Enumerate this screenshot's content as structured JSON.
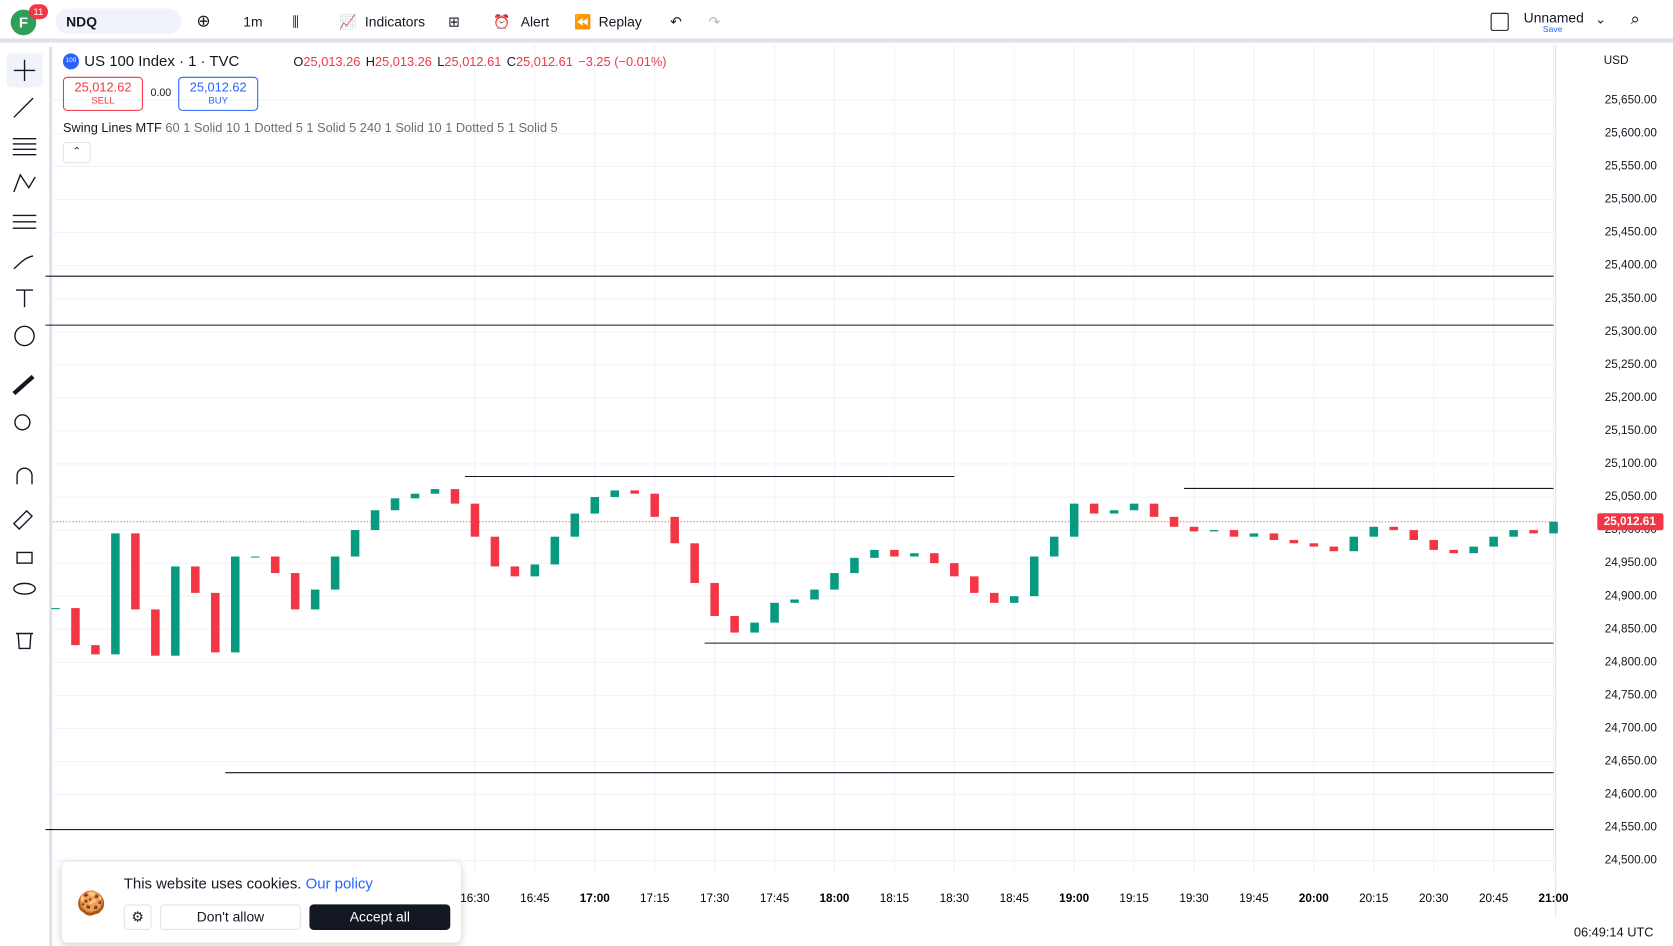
{
  "toolbar": {
    "profile": "F",
    "notifications": "11",
    "symbol": "NDQ",
    "interval": "1m",
    "indicators": "Indicators",
    "alert": "Alert",
    "replay": "Replay",
    "layout_name": "Unnamed",
    "save": "Save"
  },
  "legend": {
    "title": "US 100 Index · 1 · TVC",
    "ohlc": [
      {
        "label": "O",
        "value": "25,013.26"
      },
      {
        "label": "H",
        "value": "25,013.26"
      },
      {
        "label": "L",
        "value": "25,012.61"
      },
      {
        "label": "C",
        "value": "25,012.61"
      }
    ],
    "change": "−3.25 (−0.01%)"
  },
  "trade": {
    "sell_price": "25,012.62",
    "sell": "SELL",
    "spread": "0.00",
    "buy_price": "25,012.62",
    "buy": "BUY"
  },
  "indicator": {
    "name": "Swing Lines MTF",
    "params": "60 1 Solid 10 1 Dotted 5 1 Solid 5 240 1 Solid 10 1 Dotted 5 1 Solid 5"
  },
  "currency": "USD",
  "chart_data": {
    "type": "candlestick",
    "categories": [
      null,
      null,
      null,
      null,
      null,
      null,
      null,
      null,
      null,
      null,
      null,
      null,
      null,
      null,
      null,
      null,
      null,
      null,
      null,
      null,
      null,
      "16:30",
      null,
      null,
      "16:45",
      null,
      null,
      "17:00",
      null,
      null,
      "17:15",
      null,
      null,
      "17:30",
      null,
      null,
      "17:45",
      null,
      null,
      "18:00",
      null,
      null,
      "18:15",
      null,
      null,
      "18:30",
      null,
      null,
      "18:45",
      null,
      null,
      "19:00",
      null,
      null,
      "19:15",
      null,
      null,
      "19:30",
      null,
      null,
      "19:45",
      null,
      null,
      "20:00",
      null,
      null,
      "20:15",
      null,
      null,
      "20:30",
      null,
      null,
      "20:45",
      null,
      null,
      "21:00"
    ],
    "closes": [
      24882,
      24826,
      24812,
      24995,
      24880,
      24810,
      24945,
      24905,
      24815,
      24960,
      24960,
      24935,
      24880,
      24910,
      24960,
      25000,
      25030,
      25048,
      25055,
      25062,
      25040,
      24990,
      24945,
      24930,
      24948,
      24990,
      25025,
      25050,
      25060,
      25055,
      25020,
      24980,
      24920,
      24870,
      24845,
      24860,
      24890,
      24895,
      24910,
      24935,
      24958,
      24970,
      24960,
      24965,
      24950,
      24930,
      24905,
      24890,
      24900,
      24960,
      24990,
      25040,
      25025,
      25030,
      25040,
      25020,
      25005,
      24998,
      25000,
      24990,
      24995,
      24985,
      24980,
      24975,
      24968,
      24990,
      25005,
      25000,
      24985,
      24970,
      24965,
      24975,
      24990,
      25000,
      24995,
      25012.61
    ],
    "up_color": "#089981",
    "down_color": "#f23645",
    "ylim": [
      24479,
      25734
    ],
    "yticks": [
      {
        "value": 25650,
        "label": "25,650.00"
      },
      {
        "value": 25600,
        "label": "25,600.00"
      },
      {
        "value": 25550,
        "label": "25,550.00"
      },
      {
        "value": 25500,
        "label": "25,500.00"
      },
      {
        "value": 25450,
        "label": "25,450.00"
      },
      {
        "value": 25400,
        "label": "25,400.00"
      },
      {
        "value": 25350,
        "label": "25,350.00"
      },
      {
        "value": 25300,
        "label": "25,300.00"
      },
      {
        "value": 25250,
        "label": "25,250.00"
      },
      {
        "value": 25200,
        "label": "25,200.00"
      },
      {
        "value": 25150,
        "label": "25,150.00"
      },
      {
        "value": 25100,
        "label": "25,100.00"
      },
      {
        "value": 25050,
        "label": "25,050.00"
      },
      {
        "value": 25000,
        "label": "25,000.00"
      },
      {
        "value": 24950,
        "label": "24,950.00"
      },
      {
        "value": 24900,
        "label": "24,900.00"
      },
      {
        "value": 24850,
        "label": "24,850.00"
      },
      {
        "value": 24800,
        "label": "24,800.00"
      },
      {
        "value": 24750,
        "label": "24,750.00"
      },
      {
        "value": 24700,
        "label": "24,700.00"
      },
      {
        "value": 24650,
        "label": "24,650.00"
      },
      {
        "value": 24600,
        "label": "24,600.00"
      },
      {
        "value": 24550,
        "label": "24,550.00"
      },
      {
        "value": 24500,
        "label": "24,500.00"
      }
    ],
    "grid": true,
    "last_price": {
      "value": 25012.61,
      "label": "25,012.61"
    },
    "swing_lines": [
      {
        "value": 25384,
        "start": 0,
        "end": 75
      },
      {
        "value": 25310,
        "start": 0,
        "end": 75
      },
      {
        "value": 25081,
        "start": 21,
        "end": 45
      },
      {
        "value": 25063,
        "start": 57,
        "end": 75
      },
      {
        "value": 24829,
        "start": 33,
        "end": 75
      },
      {
        "value": 24633,
        "start": 9,
        "end": 75
      },
      {
        "value": 24547,
        "start": 0,
        "end": 75
      }
    ]
  },
  "status": {
    "time": "06:49:14 UTC"
  },
  "cookie": {
    "text": "This website uses cookies.",
    "link": "Our policy",
    "deny": "Don't allow",
    "accept": "Accept all"
  }
}
